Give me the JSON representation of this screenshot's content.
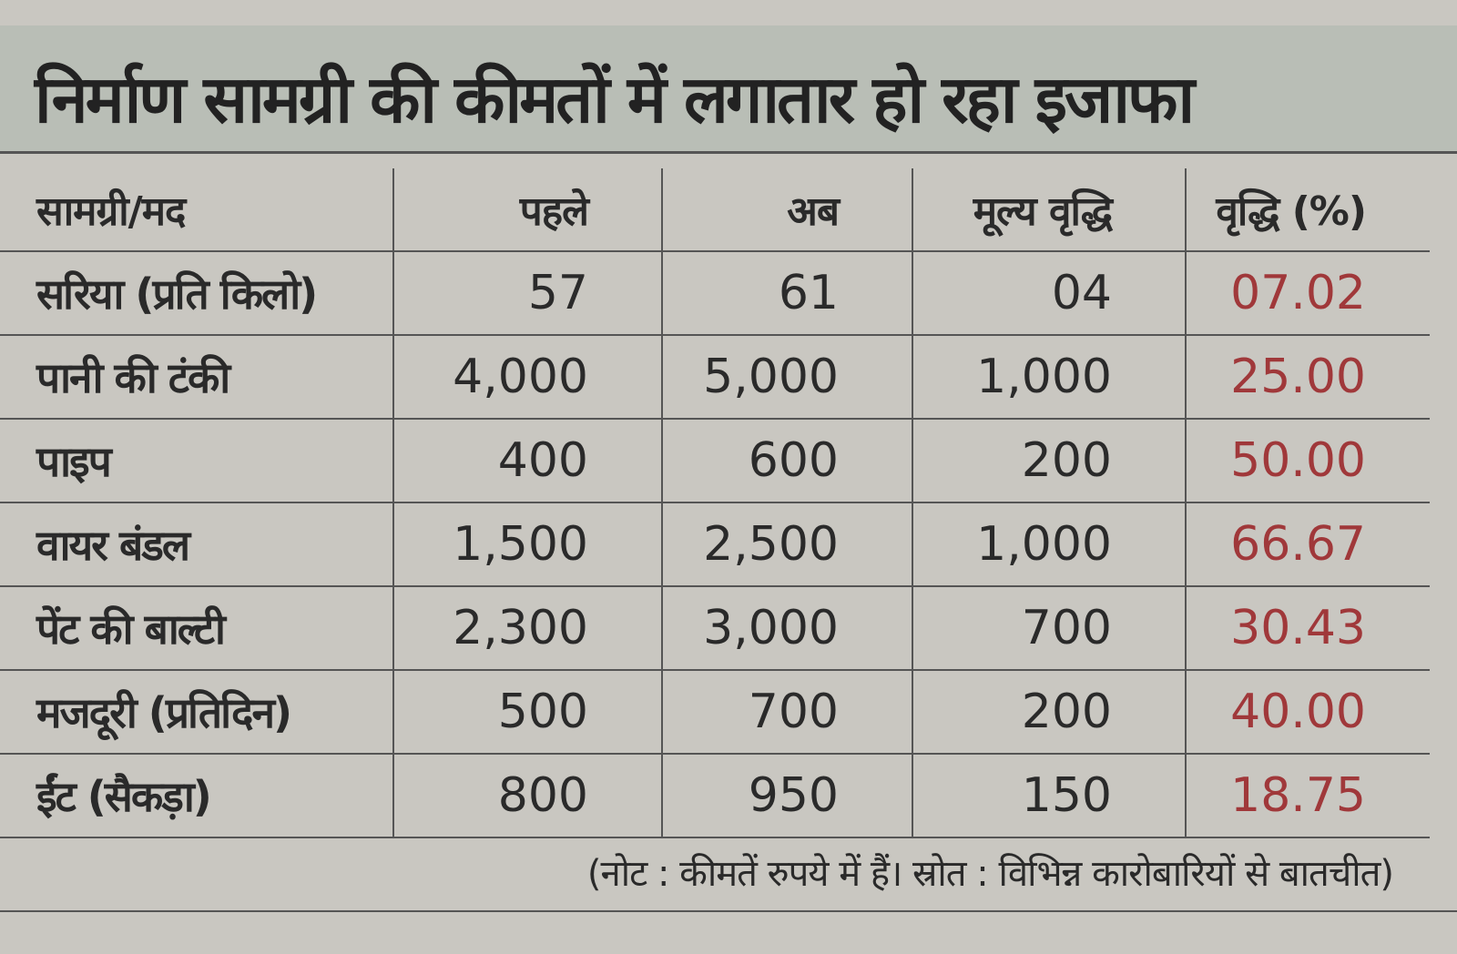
{
  "header": {
    "title": "निर्माण सामग्री की कीमतों में लगातार हो रहा इजाफा"
  },
  "table": {
    "columns": [
      "सामग्री/मद",
      "पहले",
      "अब",
      "मूल्य वृद्धि",
      "वृद्धि (%)"
    ],
    "rows": [
      [
        "सरिया (प्रति किलो)",
        "57",
        "61",
        "04",
        "07.02"
      ],
      [
        "पानी की टंकी",
        "4,000",
        "5,000",
        "1,000",
        "25.00"
      ],
      [
        "पाइप",
        "400",
        "600",
        "200",
        "50.00"
      ],
      [
        "वायर बंडल",
        "1,500",
        "2,500",
        "1,000",
        "66.67"
      ],
      [
        "पेंट की बाल्टी",
        "2,300",
        "3,000",
        "700",
        "30.43"
      ],
      [
        "मजदूरी (प्रतिदिन)",
        "500",
        "700",
        "200",
        "40.00"
      ],
      [
        "ईंट (सैकड़ा)",
        "800",
        "950",
        "150",
        "18.75"
      ]
    ]
  },
  "footer": {
    "note": "(नोट : कीमतें रुपये में हैं। स्रोत : विभिन्न कारोबारियों से बातचीत)"
  }
}
